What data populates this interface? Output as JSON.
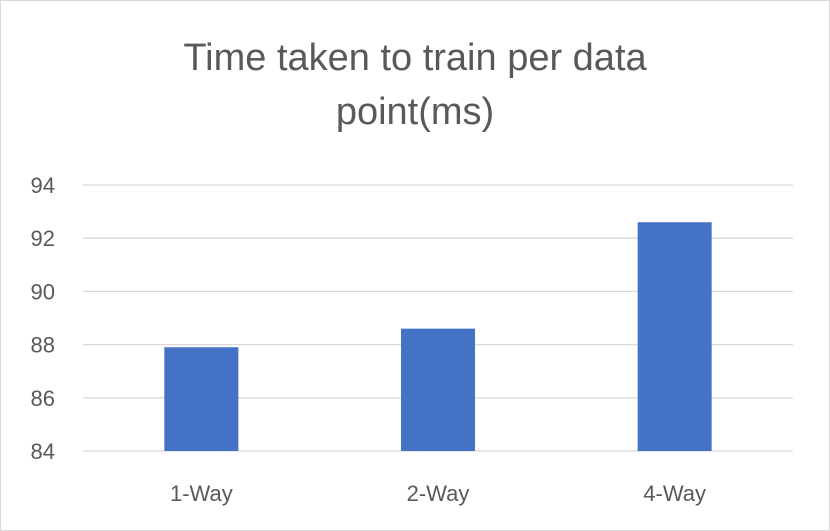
{
  "chart_data": {
    "type": "bar",
    "title": "Time taken to train per data point(ms)",
    "categories": [
      "1-Way",
      "2-Way",
      "4-Way"
    ],
    "values": [
      87.9,
      88.6,
      92.6
    ],
    "ylim": [
      84,
      94
    ],
    "yticks": [
      84,
      86,
      88,
      90,
      92,
      94
    ],
    "grid": true,
    "legend": "none",
    "bar_color": "#4472c4",
    "grid_color": "#d9d9d9",
    "text_color": "#595959"
  }
}
